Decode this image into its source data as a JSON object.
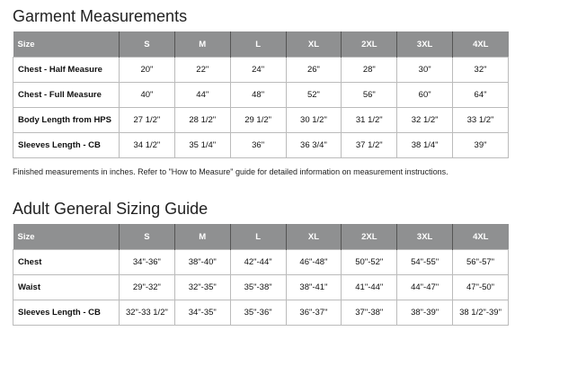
{
  "garment": {
    "title": "Garment Measurements",
    "headers": [
      "Size",
      "S",
      "M",
      "L",
      "XL",
      "2XL",
      "3XL",
      "4XL"
    ],
    "rows": [
      [
        "Chest - Half Measure",
        "20\"",
        "22\"",
        "24\"",
        "26\"",
        "28\"",
        "30\"",
        "32\""
      ],
      [
        "Chest - Full Measure",
        "40\"",
        "44\"",
        "48\"",
        "52\"",
        "56\"",
        "60\"",
        "64\""
      ],
      [
        "Body Length from HPS",
        "27 1/2\"",
        "28 1/2\"",
        "29 1/2\"",
        "30 1/2\"",
        "31 1/2\"",
        "32 1/2\"",
        "33 1/2\""
      ],
      [
        "Sleeves Length - CB",
        "34 1/2\"",
        "35 1/4\"",
        "36\"",
        "36 3/4\"",
        "37 1/2\"",
        "38 1/4\"",
        "39\""
      ]
    ],
    "note": "Finished measurements in inches. Refer to \"How to Measure\" guide for detailed information on measurement instructions."
  },
  "sizing": {
    "title": "Adult General Sizing Guide",
    "headers": [
      "Size",
      "S",
      "M",
      "L",
      "XL",
      "2XL",
      "3XL",
      "4XL"
    ],
    "rows": [
      [
        "Chest",
        "34\"-36\"",
        "38\"-40\"",
        "42\"-44\"",
        "46\"-48\"",
        "50\"-52\"",
        "54\"-55\"",
        "56\"-57\""
      ],
      [
        "Waist",
        "29\"-32\"",
        "32\"-35\"",
        "35\"-38\"",
        "38\"-41\"",
        "41\"-44\"",
        "44\"-47\"",
        "47\"-50\""
      ],
      [
        "Sleeves Length - CB",
        "32\"-33 1/2\"",
        "34\"-35\"",
        "35\"-36\"",
        "36\"-37\"",
        "37\"-38\"",
        "38\"-39\"",
        "38 1/2\"-39\""
      ]
    ]
  }
}
